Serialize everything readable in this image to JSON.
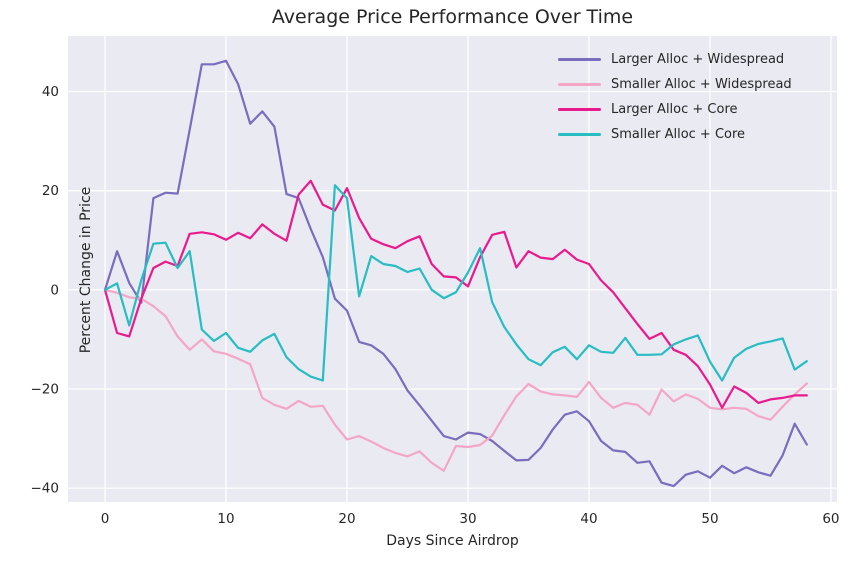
{
  "figure": {
    "title": "Average Price Performance Over Time",
    "xlabel": "Days Since Airdrop",
    "ylabel": "Percent Change in Price"
  },
  "chart_data": {
    "type": "line",
    "title": "Average Price Performance Over Time",
    "xlabel": "Days Since Airdrop",
    "ylabel": "Percent Change in Price",
    "x_unit": "day",
    "x": [
      0,
      1,
      2,
      3,
      4,
      5,
      6,
      7,
      8,
      9,
      10,
      11,
      12,
      13,
      14,
      15,
      16,
      17,
      18,
      19,
      20,
      21,
      22,
      23,
      24,
      25,
      26,
      27,
      28,
      29,
      30,
      31,
      32,
      33,
      34,
      35,
      36,
      37,
      38,
      39,
      40,
      41,
      42,
      43,
      44,
      45,
      46,
      47,
      48,
      49,
      50,
      51,
      52,
      53,
      54,
      55,
      56,
      57,
      58
    ],
    "series": [
      {
        "name": "Larger Alloc + Widespread",
        "color": "#7A6DBD",
        "values": [
          0,
          7.8,
          1.4,
          -2.6,
          18.5,
          19.6,
          19.4,
          32.3,
          45.5,
          45.5,
          46.2,
          41.5,
          33.5,
          36.0,
          32.9,
          19.3,
          18.5,
          12.3,
          6.6,
          -1.8,
          -4.2,
          -10.5,
          -11.2,
          -12.9,
          -16.0,
          -20.3,
          -23.3,
          -26.4,
          -29.5,
          -30.2,
          -28.8,
          -29.1,
          -30.5,
          -32.5,
          -34.4,
          -34.3,
          -31.9,
          -28.2,
          -25.2,
          -24.5,
          -26.5,
          -30.5,
          -32.4,
          -32.7,
          -34.9,
          -34.6,
          -38.9,
          -39.6,
          -37.3,
          -36.6,
          -37.9,
          -35.5,
          -37.0,
          -35.8,
          -36.8,
          -37.5,
          -33.4,
          -27.0,
          -31.2
        ]
      },
      {
        "name": "Smaller Alloc + Widespread",
        "color": "#F4A6C6",
        "values": [
          0,
          -0.6,
          -1.5,
          -1.8,
          -3.3,
          -5.3,
          -9.4,
          -12.1,
          -10.0,
          -12.4,
          -12.9,
          -13.9,
          -15.0,
          -21.8,
          -23.2,
          -24.0,
          -22.4,
          -23.6,
          -23.4,
          -27.2,
          -30.2,
          -29.5,
          -30.6,
          -31.9,
          -32.9,
          -33.6,
          -32.6,
          -34.9,
          -36.5,
          -31.5,
          -31.7,
          -31.3,
          -29.4,
          -25.3,
          -21.5,
          -19.0,
          -20.5,
          -21.1,
          -21.3,
          -21.6,
          -18.6,
          -21.8,
          -23.8,
          -22.8,
          -23.2,
          -25.2,
          -20.1,
          -22.5,
          -21.1,
          -22.0,
          -23.8,
          -24.1,
          -23.8,
          -24.0,
          -25.5,
          -26.2,
          -23.6,
          -21.1,
          -18.9
        ]
      },
      {
        "name": "Larger Alloc + Core",
        "color": "#E91A8D",
        "values": [
          0,
          -8.7,
          -9.4,
          -1.8,
          4.4,
          5.7,
          4.8,
          11.3,
          11.6,
          11.2,
          10.1,
          11.5,
          10.4,
          13.2,
          11.3,
          9.9,
          19.2,
          22.0,
          17.2,
          16.0,
          20.5,
          14.5,
          10.3,
          9.2,
          8.4,
          9.8,
          10.8,
          5.2,
          2.7,
          2.5,
          0.7,
          6.6,
          11.1,
          11.7,
          4.5,
          7.8,
          6.5,
          6.2,
          8.1,
          6.1,
          5.2,
          1.9,
          -0.5,
          -3.7,
          -6.9,
          -9.9,
          -8.7,
          -12.1,
          -13.1,
          -15.4,
          -19.1,
          -23.8,
          -19.5,
          -20.8,
          -22.8,
          -22.1,
          -21.8,
          -21.3,
          -21.3
        ]
      },
      {
        "name": "Smaller Alloc + Core",
        "color": "#28BCC3",
        "values": [
          0,
          1.3,
          -7.2,
          2.0,
          9.3,
          9.5,
          4.4,
          7.8,
          -8.0,
          -10.3,
          -8.7,
          -11.7,
          -12.5,
          -10.2,
          -8.9,
          -13.6,
          -16.0,
          -17.5,
          -18.3,
          21.1,
          18.5,
          -1.3,
          6.8,
          5.2,
          4.8,
          3.6,
          4.3,
          0.0,
          -1.7,
          -0.5,
          3.5,
          8.4,
          -2.5,
          -7.5,
          -11.0,
          -14.0,
          -15.2,
          -12.6,
          -11.5,
          -14.0,
          -11.2,
          -12.5,
          -12.7,
          -9.7,
          -13.1,
          -13.1,
          -13.0,
          -11.0,
          -10.0,
          -9.2,
          -14.5,
          -18.3,
          -13.7,
          -11.9,
          -10.9,
          -10.4,
          -9.8,
          -16.1,
          -14.4
        ]
      }
    ],
    "xticks": [
      0,
      10,
      20,
      30,
      40,
      50,
      60
    ],
    "yticks": [
      -40,
      -20,
      0,
      20,
      40
    ],
    "ytick_labels": [
      "−40",
      "−20",
      "0",
      "20",
      "40"
    ],
    "xlim": [
      -3.06,
      60.5
    ],
    "ylim": [
      -42.8,
      51.2
    ],
    "grid": true,
    "legend_position": "upper right",
    "styles": {
      "plot_background": "#EAEAF2",
      "figure_background": "#FFFFFF",
      "grid_color": "#FFFFFF",
      "text_color": "#262626",
      "line_width": 2.2
    }
  }
}
